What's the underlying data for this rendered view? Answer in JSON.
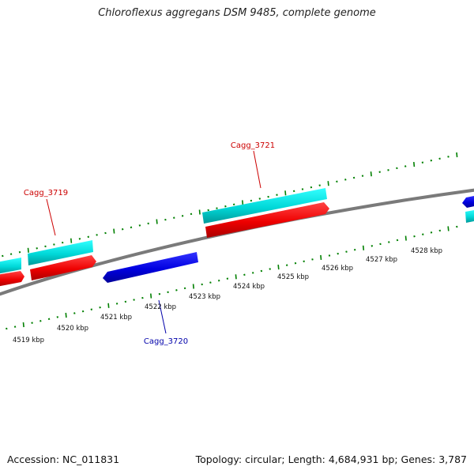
{
  "title": "Chloroflexus aggregans DSM 9485, complete genome",
  "footer": {
    "accession": "Accession: NC_011831",
    "summary": "Topology: circular; Length: 4,684,931 bp; Genes: 3,787"
  },
  "scale_labels": [
    "4519 kbp",
    "4520 kbp",
    "4521 kbp",
    "4522 kbp",
    "4523 kbp",
    "4524 kbp",
    "4525 kbp",
    "4526 kbp",
    "4527 kbp",
    "4528 kbp"
  ],
  "gene_labels": {
    "cagg_3719": "Cagg_3719",
    "cagg_3720": "Cagg_3720",
    "cagg_3721": "Cagg_3721"
  },
  "colors": {
    "forward_gene": "#ff0000",
    "reverse_gene": "#0000ee",
    "cds_forward": "#00e5e5",
    "backbone": "#808080",
    "ticks": "#008000",
    "label_forward": "#cc0000",
    "label_reverse": "#0000aa"
  }
}
